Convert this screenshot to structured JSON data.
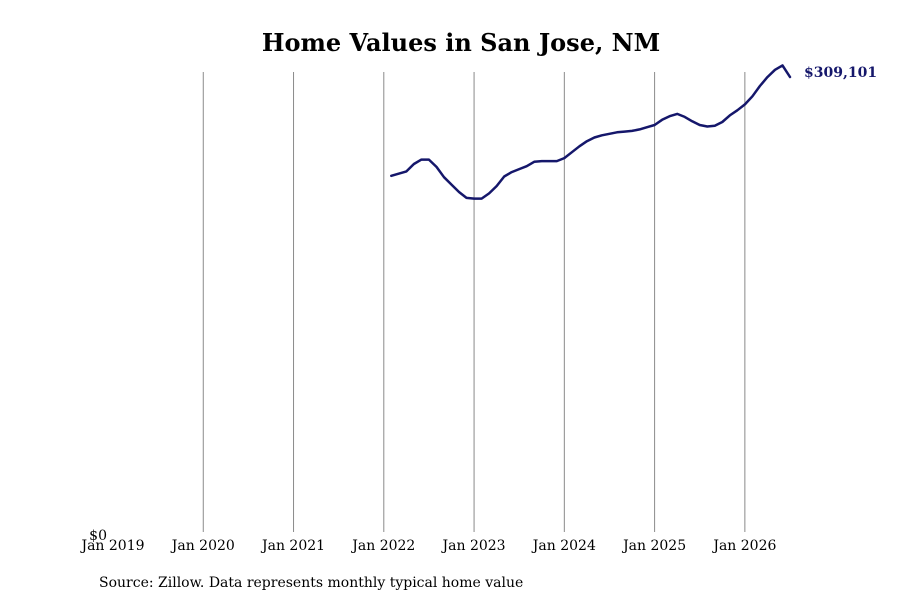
{
  "chart_data": {
    "type": "line",
    "title": "Home Values in San Jose, NM",
    "xlabel": "",
    "ylabel": "",
    "x_ticks": [
      "Jan 2019",
      "Jan 2020",
      "Jan 2021",
      "Jan 2022",
      "Jan 2023",
      "Jan 2024",
      "Jan 2025",
      "Jan 2026"
    ],
    "y_ticks": [
      "$0"
    ],
    "ylim": [
      0,
      309101
    ],
    "grid": "vertical lines at each January",
    "series": [
      {
        "color": "#15176b",
        "x": [
          "2022-02",
          "2022-04",
          "2022-05",
          "2022-06",
          "2022-07",
          "2022-08",
          "2022-09",
          "2022-10",
          "2022-11",
          "2022-12",
          "2023-01",
          "2023-02",
          "2023-03",
          "2023-04",
          "2023-05",
          "2023-06",
          "2023-07",
          "2023-08",
          "2023-09",
          "2023-10",
          "2023-11",
          "2023-12",
          "2024-01",
          "2024-02",
          "2024-03",
          "2024-04",
          "2024-05",
          "2024-06",
          "2024-07",
          "2024-08",
          "2024-09",
          "2024-10",
          "2024-11",
          "2024-12",
          "2025-01",
          "2025-02",
          "2025-03",
          "2025-04",
          "2025-05",
          "2025-06",
          "2025-07",
          "2025-08",
          "2025-09",
          "2025-10",
          "2025-11",
          "2025-12",
          "2026-01",
          "2026-02",
          "2026-03",
          "2026-04",
          "2026-05",
          "2026-06",
          "2026-07"
        ],
        "values": [
          242000,
          245000,
          250000,
          253000,
          253000,
          248000,
          241000,
          236000,
          231000,
          227000,
          226500,
          226500,
          230000,
          235000,
          241500,
          244500,
          246500,
          248500,
          251500,
          252000,
          252000,
          252000,
          254000,
          258000,
          262000,
          265500,
          268000,
          269500,
          270500,
          271500,
          272000,
          272500,
          273500,
          275000,
          276500,
          280000,
          282500,
          284000,
          282000,
          279000,
          276500,
          275500,
          276000,
          278500,
          283000,
          286500,
          290500,
          296000,
          303000,
          309000,
          314000,
          317000,
          309101
        ]
      }
    ],
    "end_label": "$309,101"
  },
  "source_note": "Source: Zillow. Data represents monthly typical home value"
}
